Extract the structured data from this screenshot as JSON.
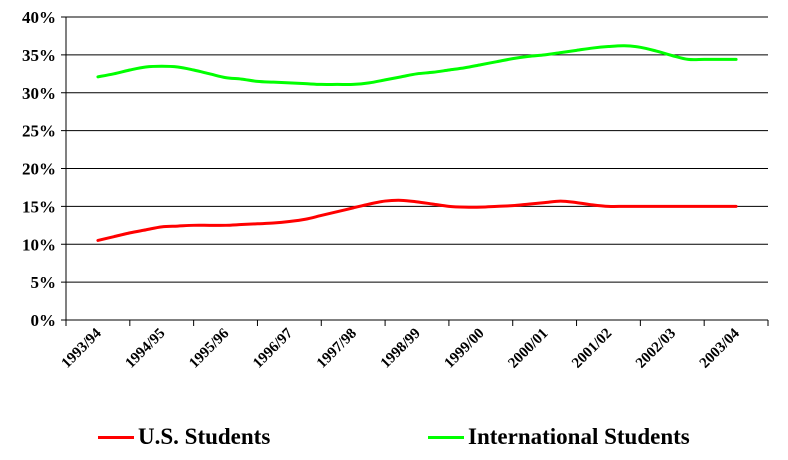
{
  "chart_data": {
    "type": "line",
    "title": "",
    "xlabel": "",
    "ylabel": "",
    "categories": [
      "1993/94",
      "1994/95",
      "1995/96",
      "1996/97",
      "1997/98",
      "1998/99",
      "1999/00",
      "2000/01",
      "2001/02",
      "2002/03",
      "2003/04"
    ],
    "ylim": [
      0,
      40
    ],
    "yticks": [
      "0%",
      "5%",
      "10%",
      "15%",
      "20%",
      "25%",
      "30%",
      "35%",
      "40%"
    ],
    "grid": true,
    "legend_position": "bottom",
    "series": [
      {
        "name": "U.S. Students",
        "color": "#ff0000",
        "x": [
          0,
          0.25,
          0.5,
          0.75,
          1,
          1.25,
          1.5,
          1.75,
          2,
          2.25,
          2.5,
          2.75,
          3,
          3.25,
          3.5,
          3.75,
          4,
          4.25,
          4.5,
          4.75,
          5,
          5.25,
          5.5,
          5.75,
          6,
          6.25,
          6.5,
          6.75,
          7,
          7.25,
          7.5,
          7.75,
          8,
          8.25,
          8.5,
          8.75,
          9,
          9.25,
          9.5,
          9.75,
          10
        ],
        "values": [
          10.5,
          11.0,
          11.5,
          11.9,
          12.3,
          12.4,
          12.5,
          12.5,
          12.5,
          12.6,
          12.7,
          12.8,
          13.0,
          13.3,
          13.8,
          14.3,
          14.8,
          15.3,
          15.7,
          15.8,
          15.6,
          15.3,
          15.0,
          14.9,
          14.9,
          15.0,
          15.1,
          15.3,
          15.5,
          15.7,
          15.5,
          15.2,
          15.0,
          15.0,
          15.0,
          15.0,
          15.0,
          15.0,
          15.0,
          15.0,
          15.0
        ]
      },
      {
        "name": "International Students",
        "color": "#00ff00",
        "x": [
          0,
          0.25,
          0.5,
          0.75,
          1,
          1.25,
          1.5,
          1.75,
          2,
          2.25,
          2.5,
          2.75,
          3,
          3.25,
          3.5,
          3.75,
          4,
          4.25,
          4.5,
          4.75,
          5,
          5.25,
          5.5,
          5.75,
          6,
          6.25,
          6.5,
          6.75,
          7,
          7.25,
          7.5,
          7.75,
          8,
          8.25,
          8.5,
          8.75,
          9,
          9.25,
          9.5,
          9.75,
          10
        ],
        "values": [
          32.1,
          32.5,
          33.0,
          33.4,
          33.5,
          33.4,
          33.0,
          32.5,
          32.0,
          31.8,
          31.5,
          31.4,
          31.3,
          31.2,
          31.1,
          31.1,
          31.1,
          31.3,
          31.7,
          32.1,
          32.5,
          32.7,
          33.0,
          33.3,
          33.7,
          34.1,
          34.5,
          34.8,
          35.0,
          35.3,
          35.6,
          35.9,
          36.1,
          36.2,
          36.0,
          35.5,
          34.9,
          34.4,
          34.4,
          34.4,
          34.4
        ]
      }
    ]
  }
}
